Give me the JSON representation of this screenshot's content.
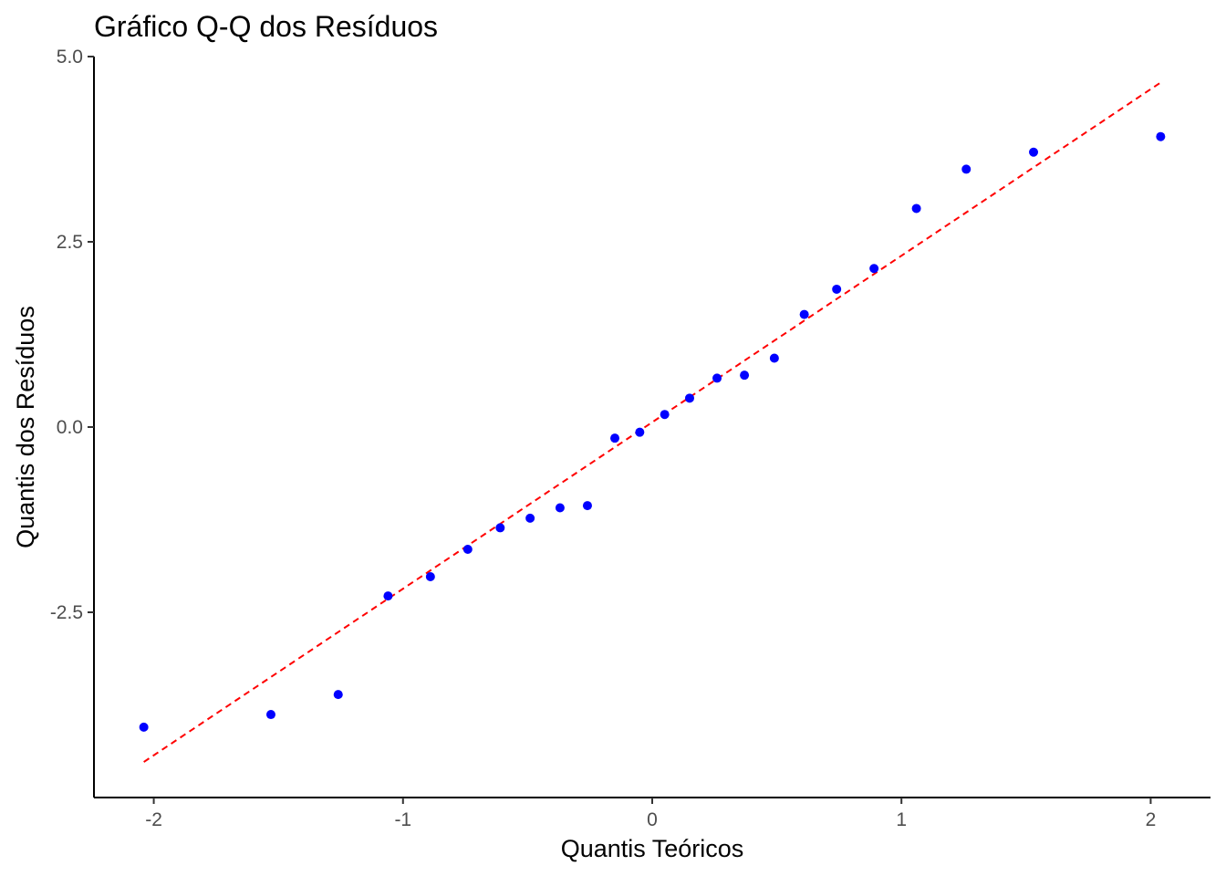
{
  "chart_data": {
    "type": "scatter",
    "title": "Gráfico Q-Q dos Resíduos",
    "xlabel": "Quantis Teóricos",
    "ylabel": "Quantis dos Resíduos",
    "xlim": [
      -2.24,
      2.24
    ],
    "ylim": [
      -5.0,
      5.0
    ],
    "x_ticks": [
      -2,
      -1,
      0,
      1,
      2
    ],
    "x_tick_labels": [
      "-2",
      "-1",
      "0",
      "1",
      "2"
    ],
    "y_ticks": [
      -2.5,
      0.0,
      2.5,
      5.0
    ],
    "y_tick_labels": [
      "-2.5",
      "0.0",
      "2.5",
      "5.0"
    ],
    "grid": false,
    "legend": "none",
    "series": [
      {
        "kind": "points",
        "color": "#0000ff",
        "x": [
          -2.04,
          -1.53,
          -1.26,
          -1.06,
          -0.89,
          -0.74,
          -0.61,
          -0.49,
          -0.37,
          -0.26,
          -0.15,
          -0.05,
          0.05,
          0.15,
          0.26,
          0.37,
          0.49,
          0.61,
          0.74,
          0.89,
          1.06,
          1.26,
          1.53,
          2.04
        ],
        "y": [
          -4.05,
          -3.88,
          -3.61,
          -2.28,
          -2.02,
          -1.65,
          -1.36,
          -1.23,
          -1.09,
          -1.06,
          -0.15,
          -0.07,
          0.17,
          0.39,
          0.66,
          0.7,
          0.93,
          1.52,
          1.86,
          2.14,
          2.95,
          3.48,
          3.71,
          3.92
        ]
      },
      {
        "kind": "reference-line",
        "color": "#ff0000",
        "linestyle": "dashed",
        "x": [
          -2.04,
          2.04
        ],
        "y": [
          -4.52,
          4.65
        ]
      }
    ]
  }
}
